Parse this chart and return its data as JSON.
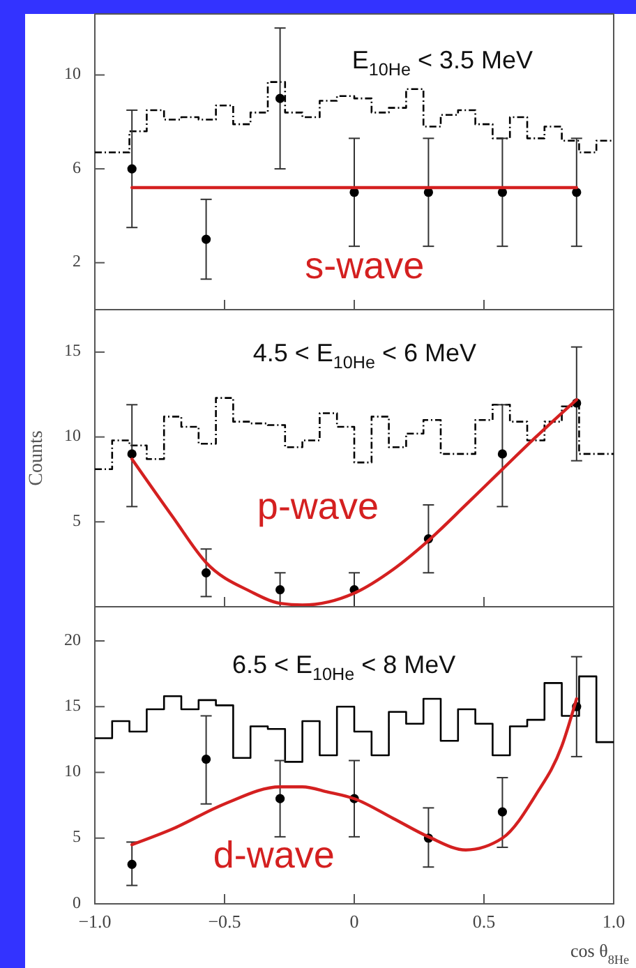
{
  "chart_data": [
    {
      "type": "line",
      "title": "E$_{10He}$ < 3.5 MeV",
      "xlim": [
        -1,
        1
      ],
      "xticks": [
        {
          "value": -0.5,
          "label": null
        },
        {
          "value": 0,
          "label": null
        },
        {
          "value": 0.5,
          "label": null
        }
      ],
      "ylim": [
        0,
        12.6
      ],
      "yticks": [
        2,
        6,
        10
      ],
      "tick_labels": "y",
      "series": [
        {
          "type": "histogram",
          "color": "#000000",
          "line_style": "dashed",
          "bins": [
            -1,
            -0.9333,
            -0.8667,
            -0.8,
            -0.7333,
            -0.6667,
            -0.6,
            -0.5333,
            -0.4667,
            -0.4,
            -0.3333,
            -0.2667,
            -0.2,
            -0.1333,
            -0.0667,
            0,
            0.0667,
            0.1333,
            0.2,
            0.2667,
            0.3333,
            0.4,
            0.4667,
            0.5333,
            0.6,
            0.6667,
            0.7333,
            0.8,
            0.8667,
            0.9333,
            1
          ],
          "values": [
            6.7,
            6.7,
            7.6,
            8.5,
            8.1,
            8.2,
            8.1,
            8.7,
            7.9,
            8.4,
            9.7,
            8.4,
            8.2,
            8.9,
            9.1,
            9.0,
            8.4,
            8.6,
            9.4,
            7.8,
            8.3,
            8.5,
            7.9,
            7.3,
            8.2,
            7.3,
            7.8,
            7.2,
            6.7,
            7.2
          ]
        },
        {
          "type": "scatter",
          "color": "#000000",
          "marker": "circle",
          "x": [
            -0.857,
            -0.571,
            -0.286,
            0,
            0.286,
            0.571,
            0.857
          ],
          "values": [
            6,
            3,
            9,
            5,
            5,
            5,
            5
          ],
          "errors": [
            [
              3.5,
              8.5
            ],
            [
              1.3,
              4.7
            ],
            [
              6,
              12
            ],
            [
              2.7,
              7.3
            ],
            [
              2.7,
              7.3
            ],
            [
              2.7,
              7.3
            ],
            [
              2.7,
              7.3
            ]
          ]
        },
        {
          "name": "s-wave",
          "color": "#d42020",
          "x": [
            -0.857,
            0.857
          ],
          "values": [
            5.2,
            5.2
          ]
        }
      ]
    },
    {
      "type": "line",
      "title": "4.5 < E$_{10He}$ < 6 MeV",
      "ylabel": "Counts",
      "xlim": [
        -1,
        1
      ],
      "xticks": [
        {
          "value": -0.5,
          "label": null
        },
        {
          "value": 0,
          "label": null
        },
        {
          "value": 0.5,
          "label": null
        }
      ],
      "ylim": [
        0,
        17.5
      ],
      "yticks": [
        5,
        10,
        15
      ],
      "tick_labels": "y",
      "series": [
        {
          "type": "histogram",
          "color": "#000000",
          "line_style": "dashed",
          "bins": [
            -1,
            -0.9333,
            -0.8667,
            -0.8,
            -0.7333,
            -0.6667,
            -0.6,
            -0.5333,
            -0.4667,
            -0.4,
            -0.3333,
            -0.2667,
            -0.2,
            -0.1333,
            -0.0667,
            0,
            0.0667,
            0.1333,
            0.2,
            0.2667,
            0.3333,
            0.4,
            0.4667,
            0.5333,
            0.6,
            0.6667,
            0.7333,
            0.8,
            0.8667,
            0.9333,
            1
          ],
          "values": [
            8.1,
            9.8,
            9.5,
            8.7,
            11.2,
            10.6,
            9.6,
            12.3,
            10.9,
            10.8,
            10.7,
            9.4,
            9.8,
            11.4,
            10.6,
            8.5,
            11.2,
            9.4,
            10.2,
            11.0,
            9.0,
            9.0,
            11.0,
            11.9,
            10.9,
            9.8,
            10.9,
            11.8,
            9.0,
            9.0
          ]
        },
        {
          "type": "scatter",
          "color": "#000000",
          "marker": "circle",
          "x": [
            -0.857,
            -0.571,
            -0.286,
            0,
            0.286,
            0.571,
            0.857
          ],
          "values": [
            9,
            2,
            1,
            1,
            4,
            9,
            12
          ],
          "errors": [
            [
              5.9,
              11.9
            ],
            [
              0.6,
              3.4
            ],
            [
              0,
              2
            ],
            [
              0,
              2
            ],
            [
              2,
              6
            ],
            [
              5.9,
              11.9
            ],
            [
              8.6,
              15.3
            ]
          ]
        },
        {
          "name": "p-wave",
          "color": "#d42020",
          "x": [
            -0.857,
            -0.7,
            -0.571,
            -0.4,
            -0.286,
            -0.2,
            0,
            0.15,
            0.286,
            0.43,
            0.571,
            0.7,
            0.857
          ],
          "values": [
            8.7,
            5.3,
            2.6,
            0.9,
            0.2,
            0.1,
            0.8,
            2.2,
            3.9,
            6.0,
            8.1,
            10.0,
            12.2
          ]
        }
      ]
    },
    {
      "type": "line",
      "title": "6.5 < E$_{10He}$ < 8 MeV",
      "xlabel": "cos θ$_{8He}$",
      "xlim": [
        -1,
        1
      ],
      "xticks": [
        {
          "value": -1,
          "label": "−1.0"
        },
        {
          "value": -0.5,
          "label": "−0.5"
        },
        0,
        0.5,
        {
          "value": 1,
          "label": "1.0"
        }
      ],
      "ylim": [
        0,
        22.6
      ],
      "yticks": [
        0,
        5,
        10,
        15,
        20
      ],
      "series": [
        {
          "type": "histogram",
          "color": "#000000",
          "line_style": "solid",
          "bins": [
            -1,
            -0.9333,
            -0.8667,
            -0.8,
            -0.7333,
            -0.6667,
            -0.6,
            -0.5333,
            -0.4667,
            -0.4,
            -0.3333,
            -0.2667,
            -0.2,
            -0.1333,
            -0.0667,
            0,
            0.0667,
            0.1333,
            0.2,
            0.2667,
            0.3333,
            0.4,
            0.4667,
            0.5333,
            0.6,
            0.6667,
            0.7333,
            0.8,
            0.8667,
            0.9333,
            1
          ],
          "values": [
            12.6,
            13.9,
            13.1,
            14.8,
            15.8,
            14.8,
            15.5,
            15.1,
            11.1,
            13.5,
            13.3,
            10.8,
            13.9,
            11.3,
            15.0,
            13.1,
            11.3,
            14.6,
            13.7,
            15.6,
            12.4,
            14.8,
            13.7,
            11.3,
            13.5,
            14.0,
            16.8,
            14.3,
            17.3,
            12.3
          ]
        },
        {
          "type": "scatter",
          "color": "#000000",
          "marker": "circle",
          "x": [
            -0.857,
            -0.571,
            -0.286,
            0,
            0.286,
            0.571,
            0.857
          ],
          "values": [
            3,
            11,
            8,
            8,
            5,
            7,
            15
          ],
          "errors": [
            [
              1.4,
              4.7
            ],
            [
              7.6,
              14.3
            ],
            [
              5.1,
              10.9
            ],
            [
              5.1,
              10.9
            ],
            [
              2.8,
              7.3
            ],
            [
              4.3,
              9.6
            ],
            [
              11.2,
              18.8
            ]
          ]
        },
        {
          "name": "d-wave",
          "color": "#d42020",
          "x": [
            -0.857,
            -0.7,
            -0.5,
            -0.286,
            -0.2,
            -0.1,
            0,
            0.15,
            0.286,
            0.43,
            0.571,
            0.7,
            0.8,
            0.857
          ],
          "values": [
            4.5,
            5.7,
            7.6,
            8.9,
            8.9,
            8.5,
            8.0,
            6.5,
            5.1,
            4.1,
            5.0,
            8.3,
            12.0,
            15.6
          ]
        }
      ]
    }
  ]
}
